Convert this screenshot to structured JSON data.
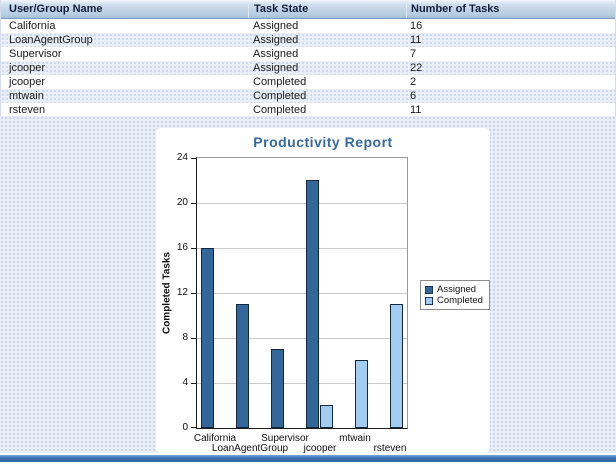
{
  "table": {
    "columns": [
      "User/Group Name",
      "Task State",
      "Number of Tasks"
    ],
    "rows": [
      [
        "California",
        "Assigned",
        "16"
      ],
      [
        "LoanAgentGroup",
        "Assigned",
        "11"
      ],
      [
        "Supervisor",
        "Assigned",
        "7"
      ],
      [
        "jcooper",
        "Assigned",
        "22"
      ],
      [
        "jcooper",
        "Completed",
        "2"
      ],
      [
        "mtwain",
        "Completed",
        "6"
      ],
      [
        "rsteven",
        "Completed",
        "11"
      ]
    ]
  },
  "chart_data": {
    "type": "bar",
    "title": "Productivity Report",
    "xlabel": "",
    "ylabel": "Completed Tasks",
    "categories": [
      "California",
      "LoanAgentGroup",
      "Supervisor",
      "jcooper",
      "mtwain",
      "rsteven"
    ],
    "series": [
      {
        "name": "Assigned",
        "color": "#336699",
        "values": [
          16,
          11,
          7,
          22,
          null,
          null
        ]
      },
      {
        "name": "Completed",
        "color": "#a3cdf0",
        "values": [
          null,
          null,
          null,
          2,
          6,
          11
        ]
      }
    ],
    "ylim": [
      0,
      24
    ],
    "ytick_step": 4,
    "grid": true,
    "legend_position": "right"
  },
  "colors": {
    "chart_title": "#366a9f",
    "gridline": "#cccccc",
    "footer_bar": "#3a70b4"
  }
}
